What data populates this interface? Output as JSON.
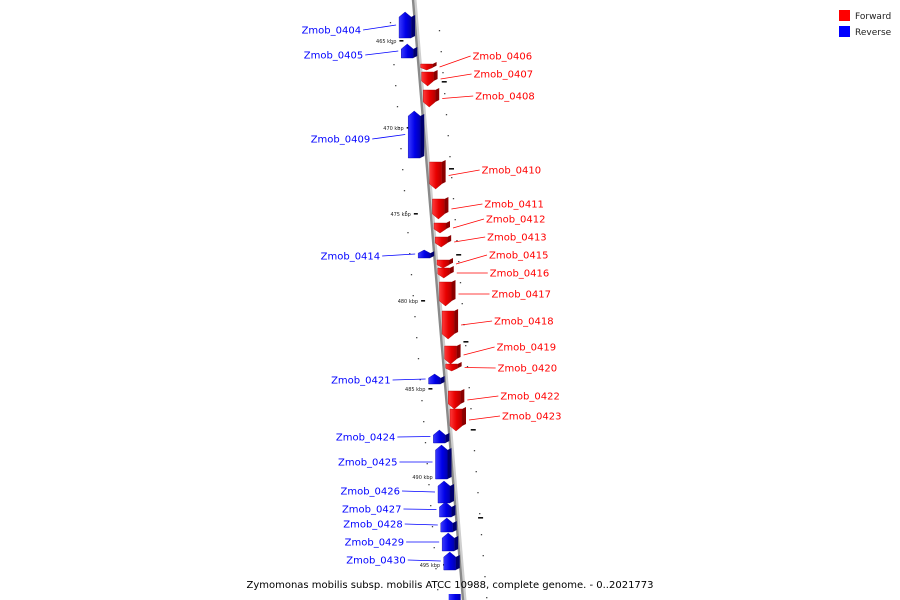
{
  "legend": [
    {
      "label": "Forward",
      "color": "#ff0000"
    },
    {
      "label": "Reverse",
      "color": "#0000ff"
    }
  ],
  "caption": "Zymomonas mobilis subsp. mobilis ATCC 10988, complete genome. - 0..2021773",
  "colors": {
    "forward": "#ff0000",
    "reverse": "#0000ff",
    "backbone": "#888888"
  },
  "scale_ticks": [
    {
      "label": "465 kbp",
      "kbp": 465
    },
    {
      "label": "470 kbp",
      "kbp": 470
    },
    {
      "label": "475 kbp",
      "kbp": 475
    },
    {
      "label": "480 kbp",
      "kbp": 480
    },
    {
      "label": "485 kbp",
      "kbp": 485
    },
    {
      "label": "490 kbp",
      "kbp": 490
    },
    {
      "label": "495 kbp",
      "kbp": 495
    }
  ],
  "genes": [
    {
      "name": "Zmob_0404",
      "strand": "reverse"
    },
    {
      "name": "Zmob_0405",
      "strand": "reverse"
    },
    {
      "name": "Zmob_0406",
      "strand": "forward"
    },
    {
      "name": "Zmob_0407",
      "strand": "forward"
    },
    {
      "name": "Zmob_0408",
      "strand": "forward"
    },
    {
      "name": "Zmob_0409",
      "strand": "reverse"
    },
    {
      "name": "Zmob_0410",
      "strand": "forward"
    },
    {
      "name": "Zmob_0411",
      "strand": "forward"
    },
    {
      "name": "Zmob_0412",
      "strand": "forward"
    },
    {
      "name": "Zmob_0413",
      "strand": "forward"
    },
    {
      "name": "Zmob_0414",
      "strand": "reverse"
    },
    {
      "name": "Zmob_0415",
      "strand": "forward"
    },
    {
      "name": "Zmob_0416",
      "strand": "forward"
    },
    {
      "name": "Zmob_0417",
      "strand": "forward"
    },
    {
      "name": "Zmob_0418",
      "strand": "forward"
    },
    {
      "name": "Zmob_0419",
      "strand": "forward"
    },
    {
      "name": "Zmob_0420",
      "strand": "forward"
    },
    {
      "name": "Zmob_0421",
      "strand": "reverse"
    },
    {
      "name": "Zmob_0422",
      "strand": "forward"
    },
    {
      "name": "Zmob_0423",
      "strand": "forward"
    },
    {
      "name": "Zmob_0424",
      "strand": "reverse"
    },
    {
      "name": "Zmob_0425",
      "strand": "reverse"
    },
    {
      "name": "Zmob_0426",
      "strand": "reverse"
    },
    {
      "name": "Zmob_0427",
      "strand": "reverse"
    },
    {
      "name": "Zmob_0428",
      "strand": "reverse"
    },
    {
      "name": "Zmob_0429",
      "strand": "reverse"
    },
    {
      "name": "Zmob_0430",
      "strand": "reverse"
    }
  ]
}
